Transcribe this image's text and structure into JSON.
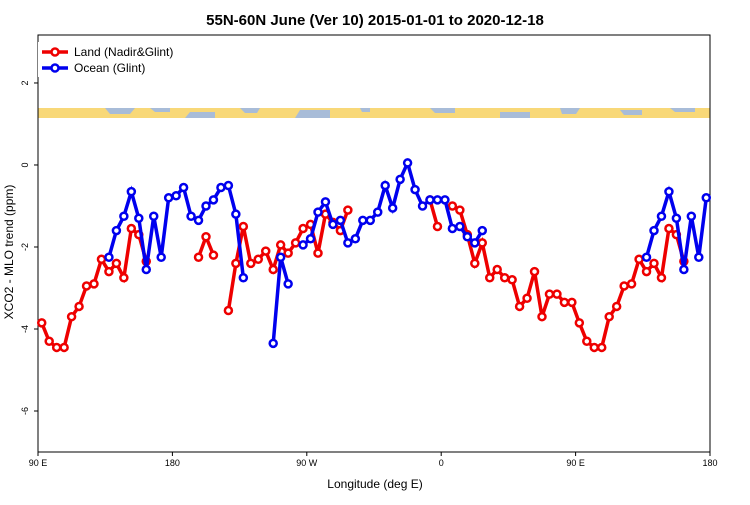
{
  "chart_data": {
    "type": "line",
    "title": "55N-60N June (Ver 10)   2015-01-01 to 2020-12-18",
    "xlabel": "Longitude (deg E)",
    "ylabel": "XCO2 - MLO trend (ppm)",
    "x": [
      92.5,
      97.5,
      102.5,
      107.5,
      112.5,
      117.5,
      122.5,
      127.5,
      132.5,
      137.5,
      142.5,
      147.5,
      152.5,
      157.5,
      162.5,
      167.5,
      172.5,
      177.5,
      182.5,
      187.5,
      192.5,
      197.5,
      202.5,
      207.5,
      212.5,
      217.5,
      222.5,
      227.5,
      232.5,
      237.5,
      242.5,
      247.5,
      252.5,
      257.5,
      262.5,
      267.5,
      272.5,
      277.5,
      282.5,
      287.5,
      292.5,
      297.5,
      302.5,
      307.5,
      312.5,
      317.5,
      322.5,
      327.5,
      332.5,
      337.5,
      342.5,
      347.5,
      352.5,
      357.5,
      362.5,
      367.5,
      372.5,
      377.5,
      382.5,
      387.5,
      392.5,
      397.5,
      402.5,
      407.5,
      412.5,
      417.5,
      422.5,
      427.5,
      432.5,
      437.5,
      442.5,
      447.5,
      452.5,
      457.5,
      462.5,
      467.5,
      472.5,
      477.5,
      482.5,
      487.5,
      492.5,
      497.5,
      502.5,
      507.5,
      512.5,
      517.5,
      522.5,
      527.5,
      532.5,
      537.5
    ],
    "series": [
      {
        "name": "Land (Nadir&Glint)",
        "color": "#ee0000",
        "values": [
          -3.85,
          -4.3,
          -4.45,
          -4.45,
          -3.7,
          -3.45,
          -2.95,
          -2.9,
          -2.3,
          -2.6,
          -2.4,
          -2.75,
          -1.55,
          -1.7,
          -2.35,
          null,
          null,
          null,
          null,
          null,
          null,
          -2.25,
          -1.75,
          -2.2,
          null,
          -3.55,
          -2.4,
          -1.5,
          -2.4,
          -2.3,
          -2.1,
          -2.55,
          -1.95,
          -2.15,
          -1.9,
          -1.55,
          -1.45,
          -2.15,
          -1.2,
          -1.4,
          -1.6,
          -1.1,
          null,
          null,
          null,
          null,
          null,
          null,
          null,
          null,
          null,
          null,
          -0.85,
          -1.5,
          null,
          -1.0,
          -1.1,
          -1.7,
          -2.4,
          -1.9,
          -2.75,
          -2.55,
          -2.75,
          -2.8,
          -3.45,
          -3.25,
          -2.6,
          -3.7,
          -3.15,
          -3.15,
          -3.35,
          -3.35,
          -3.85,
          -4.3,
          -4.45,
          -4.45,
          -3.7,
          -3.45,
          -2.95,
          -2.9,
          -2.3,
          -2.6,
          -2.4,
          -2.75,
          -1.55,
          -1.7,
          -2.35,
          null,
          null,
          null
        ]
      },
      {
        "name": "Ocean (Glint)",
        "color": "#0000ee",
        "values": [
          null,
          null,
          null,
          null,
          null,
          null,
          null,
          null,
          null,
          -2.25,
          -1.6,
          -1.25,
          -0.65,
          -1.3,
          -2.55,
          -1.25,
          -2.25,
          -0.8,
          -0.75,
          -0.55,
          -1.25,
          -1.35,
          -1.0,
          -0.85,
          -0.55,
          -0.5,
          -1.2,
          -2.75,
          null,
          null,
          null,
          -4.35,
          -2.25,
          -2.9,
          null,
          -1.95,
          -1.8,
          -1.15,
          -0.9,
          -1.45,
          -1.35,
          -1.9,
          -1.8,
          -1.35,
          -1.35,
          -1.15,
          -0.5,
          -1.05,
          -0.35,
          0.05,
          -0.6,
          -1.0,
          -0.85,
          -0.85,
          -0.85,
          -1.55,
          -1.5,
          -1.75,
          -1.9,
          -1.6,
          null,
          null,
          null,
          null,
          null,
          null,
          null,
          null,
          null,
          null,
          null,
          null,
          null,
          null,
          null,
          null,
          null,
          null,
          null,
          null,
          null,
          -2.25,
          -1.6,
          -1.25,
          -0.65,
          -1.3,
          -2.55,
          -1.25,
          -2.25,
          -0.8
        ]
      }
    ],
    "xlim": [
      90,
      540
    ],
    "xticks": [
      {
        "value": 90,
        "label": "90 E"
      },
      180,
      {
        "value": 270,
        "label": "90 W"
      },
      {
        "value": 360,
        "label": "0"
      },
      {
        "value": 450,
        "label": "90 E"
      },
      {
        "value": 540,
        "label": "180"
      }
    ],
    "ylim": [
      -7,
      3.17
    ],
    "yticks": [
      -6,
      -4,
      -2,
      0,
      2
    ],
    "legend": "top-left"
  }
}
